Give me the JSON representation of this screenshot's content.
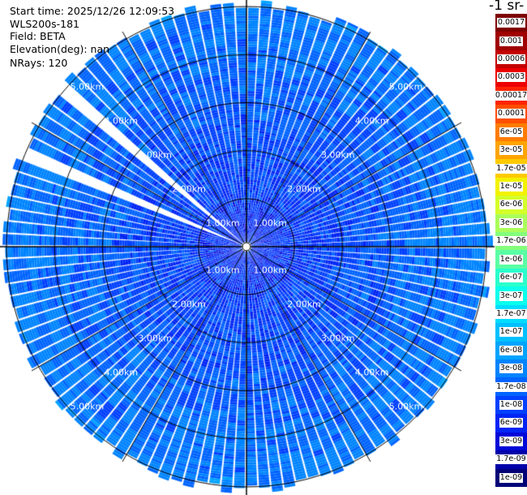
{
  "info": {
    "start_time": "Start time: 2025/12/26 12:09:53",
    "instrument": "WLS200s-181",
    "field": "Field: BETA",
    "elevation": "Elevation(deg): nan",
    "nrays": "NRays: 120"
  },
  "chart_data": {
    "type": "heatmap",
    "projection": "polar (PPI)",
    "field": "BETA",
    "n_rays": 120,
    "range_rings_km": [
      "1.00km",
      "2.00km",
      "3.00km",
      "4.00km",
      "5.00km"
    ],
    "max_range_km": 5.1,
    "missing_ray_azimuth_region": "west-northwest (two empty rays)",
    "typical_value_range": [
      1e-08,
      1e-07
    ],
    "colorbar": {
      "title": "-1 sr-",
      "scale": "log",
      "levels": [
        "0.0017",
        "0.001",
        "0.0006",
        "0.0003",
        "0.00017",
        "0.0001",
        "6e-05",
        "3e-05",
        "1.7e-05",
        "1e-05",
        "6e-06",
        "3e-06",
        "1.7e-06",
        "1e-06",
        "6e-07",
        "3e-07",
        "1.7e-07",
        "1e-07",
        "6e-08",
        "3e-08",
        "1.7e-08",
        "1e-08",
        "6e-09",
        "3e-09",
        "1.7e-09",
        "1e-09"
      ],
      "colors": [
        "#7f0000",
        "#a00000",
        "#c40000",
        "#ec0000",
        "#ff2400",
        "#ff4e00",
        "#ff7c00",
        "#ffa400",
        "#ffca00",
        "#f2f200",
        "#d4ff2a",
        "#aaff5a",
        "#84ff7c",
        "#5affa4",
        "#2affcc",
        "#0affec",
        "#00dcff",
        "#00c0ff",
        "#00a4ff",
        "#0084ff",
        "#0064ff",
        "#0040ff",
        "#0024f4",
        "#0008d8",
        "#0000aa",
        "#000078"
      ]
    }
  }
}
